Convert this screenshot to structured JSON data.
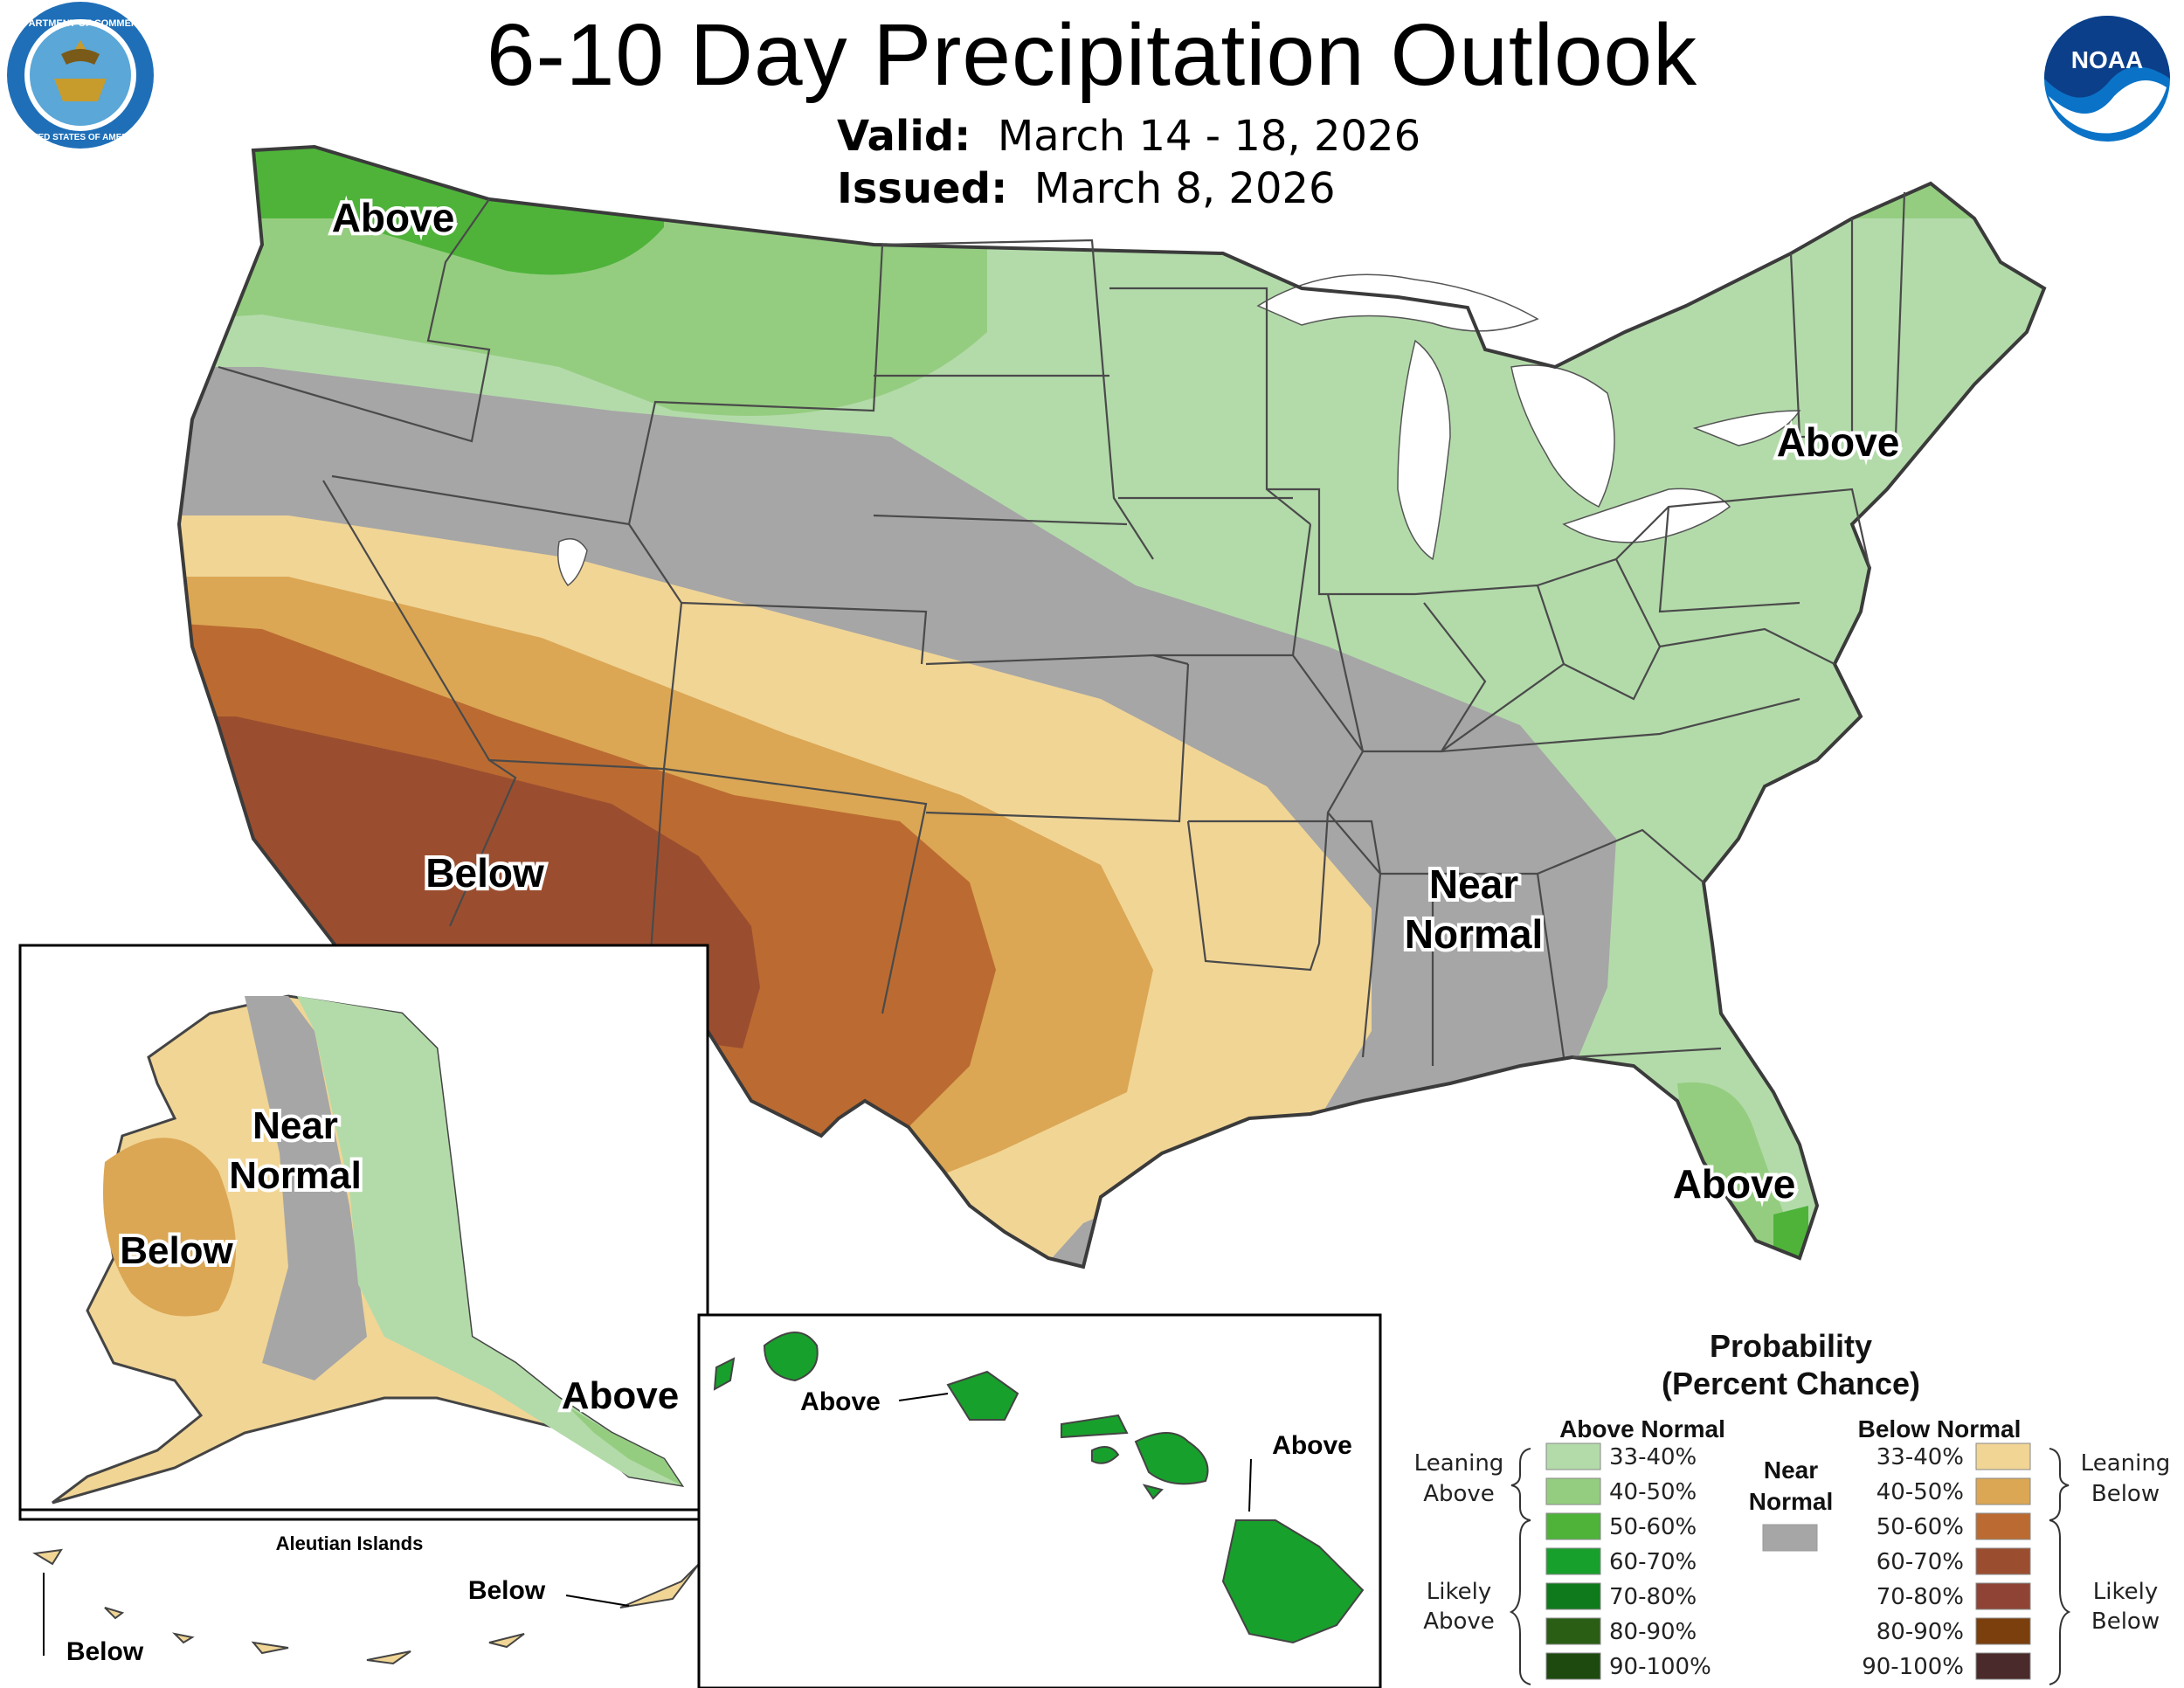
{
  "header": {
    "title": "6-10 Day Precipitation Outlook",
    "valid_label": "Valid:",
    "valid_value": "March 14 - 18, 2026",
    "issued_label": "Issued:",
    "issued_value": "March 8, 2026"
  },
  "logos": {
    "left": "department-of-commerce-seal",
    "left_text": "DEPARTMENT OF COMMERCE · UNITED STATES OF AMERICA",
    "right": "noaa-logo",
    "right_text": "NOAA"
  },
  "map_labels": {
    "northwest": "Above",
    "northeast": "Above",
    "southwest": "Below",
    "south_near_1": "Near",
    "south_near_2": "Normal",
    "florida": "Above"
  },
  "alaska": {
    "near_1": "Near",
    "near_2": "Normal",
    "below": "Below",
    "above": "Above",
    "aleutian_title": "Aleutian Islands",
    "aleutian_below_east": "Below",
    "aleutian_below_west": "Below"
  },
  "hawaii": {
    "above_left": "Above",
    "above_right": "Above"
  },
  "legend": {
    "title_1": "Probability",
    "title_2": "(Percent Chance)",
    "above_header": "Above Normal",
    "below_header": "Below Normal",
    "near_header_1": "Near",
    "near_header_2": "Normal",
    "leaning_above_1": "Leaning",
    "leaning_above_2": "Above",
    "likely_above_1": "Likely",
    "likely_above_2": "Above",
    "leaning_below_1": "Leaning",
    "leaning_below_2": "Below",
    "likely_below_1": "Likely",
    "likely_below_2": "Below",
    "ranges": [
      "33-40%",
      "40-50%",
      "50-60%",
      "60-70%",
      "70-80%",
      "80-90%",
      "90-100%"
    ],
    "above_colors": [
      "#b3dbaa",
      "#95cd80",
      "#4fb33a",
      "#18a02c",
      "#0f7a1c",
      "#2b5e15",
      "#1e4a10"
    ],
    "below_colors": [
      "#f1d595",
      "#dba754",
      "#bb6b31",
      "#9b4e2f",
      "#8f4335",
      "#7a3f0c",
      "#4a2a2a"
    ],
    "near_color": "#a6a6a6"
  }
}
